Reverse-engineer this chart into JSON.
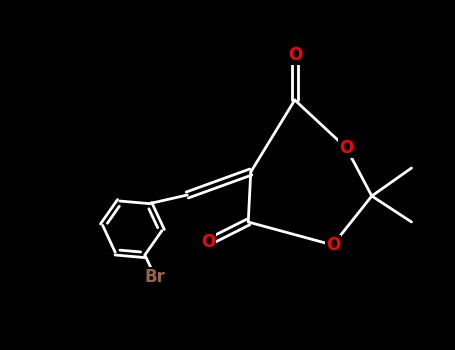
{
  "background_color": "#000000",
  "bond_color": "#ffffff",
  "O_color": "#ff0000",
  "Br_color": "#996644",
  "bond_lw": 2.0,
  "figsize": [
    4.55,
    3.5
  ],
  "dpi": 100,
  "xlim": [
    -1,
    10
  ],
  "ylim": [
    -1,
    9
  ]
}
